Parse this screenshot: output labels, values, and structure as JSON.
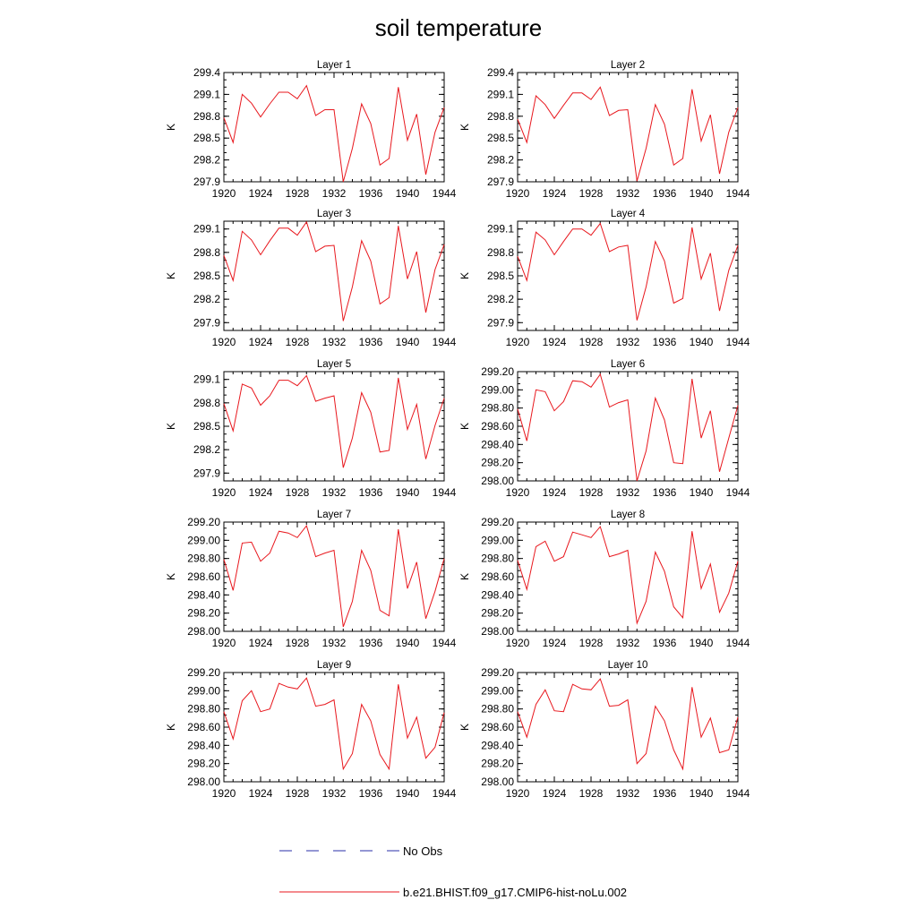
{
  "title": "soil temperature",
  "colors": {
    "model_line": "#e8171d",
    "obs_line": "#2a2fa8",
    "axis": "#000000"
  },
  "legend": {
    "obs_label": "No Obs",
    "model_label": "b.e21.BHIST.f09_g17.CMIP6-hist-noLu.002"
  },
  "chart_data": [
    {
      "type": "line",
      "title": "Layer 1",
      "ylabel": "K",
      "xlabel": "",
      "xlim": [
        1920,
        1944
      ],
      "ylim": [
        297.9,
        299.4
      ],
      "yticks": [
        "297.9",
        "298.2",
        "298.5",
        "298.8",
        "299.1",
        "299.4"
      ],
      "xticks": [
        "1920",
        "1924",
        "1928",
        "1932",
        "1936",
        "1940",
        "1944"
      ],
      "x": [
        1920,
        1921,
        1922,
        1923,
        1924,
        1925,
        1926,
        1927,
        1928,
        1929,
        1930,
        1931,
        1932,
        1933,
        1934,
        1935,
        1936,
        1937,
        1938,
        1939,
        1940,
        1941,
        1942,
        1943,
        1944
      ],
      "series": [
        {
          "name": "b.e21.BHIST.f09_g17.CMIP6-hist-noLu.002",
          "values": [
            298.78,
            298.44,
            299.1,
            298.98,
            298.79,
            298.97,
            299.13,
            299.13,
            299.04,
            299.22,
            298.81,
            298.89,
            298.89,
            297.9,
            298.36,
            298.97,
            298.7,
            298.13,
            298.22,
            299.2,
            298.47,
            298.83,
            298.0,
            298.58,
            298.92
          ]
        }
      ]
    },
    {
      "type": "line",
      "title": "Layer 2",
      "ylabel": "K",
      "xlabel": "",
      "xlim": [
        1920,
        1944
      ],
      "ylim": [
        297.9,
        299.4
      ],
      "yticks": [
        "297.9",
        "298.2",
        "298.5",
        "298.8",
        "299.1",
        "299.4"
      ],
      "xticks": [
        "1920",
        "1924",
        "1928",
        "1932",
        "1936",
        "1940",
        "1944"
      ],
      "x": [
        1920,
        1921,
        1922,
        1923,
        1924,
        1925,
        1926,
        1927,
        1928,
        1929,
        1930,
        1931,
        1932,
        1933,
        1934,
        1935,
        1936,
        1937,
        1938,
        1939,
        1940,
        1941,
        1942,
        1943,
        1944
      ],
      "series": [
        {
          "name": "b.e21.BHIST.f09_g17.CMIP6-hist-noLu.002",
          "values": [
            298.76,
            298.44,
            299.08,
            298.96,
            298.77,
            298.95,
            299.12,
            299.12,
            299.03,
            299.2,
            298.81,
            298.88,
            298.89,
            297.91,
            298.36,
            298.96,
            298.69,
            298.13,
            298.22,
            299.17,
            298.46,
            298.82,
            298.01,
            298.58,
            298.92
          ]
        }
      ]
    },
    {
      "type": "line",
      "title": "Layer 3",
      "ylabel": "K",
      "xlabel": "",
      "xlim": [
        1920,
        1944
      ],
      "ylim": [
        297.8,
        299.2
      ],
      "yticks": [
        "297.9",
        "298.2",
        "298.5",
        "298.8",
        "299.1"
      ],
      "xticks": [
        "1920",
        "1924",
        "1928",
        "1932",
        "1936",
        "1940",
        "1944"
      ],
      "x": [
        1920,
        1921,
        1922,
        1923,
        1924,
        1925,
        1926,
        1927,
        1928,
        1929,
        1930,
        1931,
        1932,
        1933,
        1934,
        1935,
        1936,
        1937,
        1938,
        1939,
        1940,
        1941,
        1942,
        1943,
        1944
      ],
      "series": [
        {
          "name": "b.e21.BHIST.f09_g17.CMIP6-hist-noLu.002",
          "values": [
            298.76,
            298.44,
            299.07,
            298.96,
            298.77,
            298.95,
            299.11,
            299.11,
            299.02,
            299.19,
            298.81,
            298.88,
            298.89,
            297.92,
            298.36,
            298.95,
            298.69,
            298.14,
            298.22,
            299.14,
            298.46,
            298.81,
            298.03,
            298.58,
            298.9
          ]
        }
      ]
    },
    {
      "type": "line",
      "title": "Layer 4",
      "ylabel": "K",
      "xlabel": "",
      "xlim": [
        1920,
        1944
      ],
      "ylim": [
        297.8,
        299.2
      ],
      "yticks": [
        "297.9",
        "298.2",
        "298.5",
        "298.8",
        "299.1"
      ],
      "xticks": [
        "1920",
        "1924",
        "1928",
        "1932",
        "1936",
        "1940",
        "1944"
      ],
      "x": [
        1920,
        1921,
        1922,
        1923,
        1924,
        1925,
        1926,
        1927,
        1928,
        1929,
        1930,
        1931,
        1932,
        1933,
        1934,
        1935,
        1936,
        1937,
        1938,
        1939,
        1940,
        1941,
        1942,
        1943,
        1944
      ],
      "series": [
        {
          "name": "b.e21.BHIST.f09_g17.CMIP6-hist-noLu.002",
          "values": [
            298.75,
            298.44,
            299.06,
            298.96,
            298.77,
            298.94,
            299.1,
            299.1,
            299.02,
            299.17,
            298.81,
            298.87,
            298.89,
            297.93,
            298.36,
            298.94,
            298.69,
            298.15,
            298.21,
            299.12,
            298.46,
            298.79,
            298.05,
            298.57,
            298.89
          ]
        }
      ]
    },
    {
      "type": "line",
      "title": "Layer 5",
      "ylabel": "K",
      "xlabel": "",
      "xlim": [
        1920,
        1944
      ],
      "ylim": [
        297.8,
        299.2
      ],
      "yticks": [
        "297.9",
        "298.2",
        "298.5",
        "298.8",
        "299.1"
      ],
      "xticks": [
        "1920",
        "1924",
        "1928",
        "1932",
        "1936",
        "1940",
        "1944"
      ],
      "x": [
        1920,
        1921,
        1922,
        1923,
        1924,
        1925,
        1926,
        1927,
        1928,
        1929,
        1930,
        1931,
        1932,
        1933,
        1934,
        1935,
        1936,
        1937,
        1938,
        1939,
        1940,
        1941,
        1942,
        1943,
        1944
      ],
      "series": [
        {
          "name": "b.e21.BHIST.f09_g17.CMIP6-hist-noLu.002",
          "values": [
            298.79,
            298.44,
            299.04,
            298.99,
            298.77,
            298.89,
            299.09,
            299.09,
            299.02,
            299.15,
            298.82,
            298.86,
            298.89,
            297.97,
            298.35,
            298.93,
            298.68,
            298.17,
            298.19,
            299.12,
            298.46,
            298.78,
            298.08,
            298.51,
            298.86
          ]
        }
      ]
    },
    {
      "type": "line",
      "title": "Layer 6",
      "ylabel": "K",
      "xlabel": "",
      "xlim": [
        1920,
        1944
      ],
      "ylim": [
        298.0,
        299.2
      ],
      "yticks": [
        "298.00",
        "298.20",
        "298.40",
        "298.60",
        "298.80",
        "299.00",
        "299.20"
      ],
      "xticks": [
        "1920",
        "1924",
        "1928",
        "1932",
        "1936",
        "1940",
        "1944"
      ],
      "x": [
        1920,
        1921,
        1922,
        1923,
        1924,
        1925,
        1926,
        1927,
        1928,
        1929,
        1930,
        1931,
        1932,
        1933,
        1934,
        1935,
        1936,
        1937,
        1938,
        1939,
        1940,
        1941,
        1942,
        1943,
        1944
      ],
      "series": [
        {
          "name": "b.e21.BHIST.f09_g17.CMIP6-hist-noLu.002",
          "values": [
            298.79,
            298.44,
            299.0,
            298.98,
            298.77,
            298.87,
            299.1,
            299.09,
            299.03,
            299.17,
            298.81,
            298.86,
            298.89,
            298.0,
            298.33,
            298.91,
            298.67,
            298.2,
            298.19,
            299.12,
            298.47,
            298.77,
            298.1,
            298.47,
            298.83
          ]
        }
      ]
    },
    {
      "type": "line",
      "title": "Layer 7",
      "ylabel": "K",
      "xlabel": "",
      "xlim": [
        1920,
        1944
      ],
      "ylim": [
        298.0,
        299.2
      ],
      "yticks": [
        "298.00",
        "298.20",
        "298.40",
        "298.60",
        "298.80",
        "299.00",
        "299.20"
      ],
      "xticks": [
        "1920",
        "1924",
        "1928",
        "1932",
        "1936",
        "1940",
        "1944"
      ],
      "x": [
        1920,
        1921,
        1922,
        1923,
        1924,
        1925,
        1926,
        1927,
        1928,
        1929,
        1930,
        1931,
        1932,
        1933,
        1934,
        1935,
        1936,
        1937,
        1938,
        1939,
        1940,
        1941,
        1942,
        1943,
        1944
      ],
      "series": [
        {
          "name": "b.e21.BHIST.f09_g17.CMIP6-hist-noLu.002",
          "values": [
            298.79,
            298.45,
            298.97,
            298.98,
            298.77,
            298.86,
            299.1,
            299.08,
            299.03,
            299.16,
            298.82,
            298.86,
            298.89,
            298.05,
            298.33,
            298.89,
            298.67,
            298.23,
            298.17,
            299.12,
            298.47,
            298.76,
            298.14,
            298.44,
            298.8
          ]
        }
      ]
    },
    {
      "type": "line",
      "title": "Layer 8",
      "ylabel": "K",
      "xlabel": "",
      "xlim": [
        1920,
        1944
      ],
      "ylim": [
        298.0,
        299.2
      ],
      "yticks": [
        "298.00",
        "298.20",
        "298.40",
        "298.60",
        "298.80",
        "299.00",
        "299.20"
      ],
      "xticks": [
        "1920",
        "1924",
        "1928",
        "1932",
        "1936",
        "1940",
        "1944"
      ],
      "x": [
        1920,
        1921,
        1922,
        1923,
        1924,
        1925,
        1926,
        1927,
        1928,
        1929,
        1930,
        1931,
        1932,
        1933,
        1934,
        1935,
        1936,
        1937,
        1938,
        1939,
        1940,
        1941,
        1942,
        1943,
        1944
      ],
      "series": [
        {
          "name": "b.e21.BHIST.f09_g17.CMIP6-hist-noLu.002",
          "values": [
            298.78,
            298.46,
            298.93,
            298.99,
            298.77,
            298.82,
            299.09,
            299.06,
            299.03,
            299.15,
            298.82,
            298.85,
            298.89,
            298.09,
            298.33,
            298.87,
            298.66,
            298.27,
            298.15,
            299.1,
            298.47,
            298.74,
            298.21,
            298.42,
            298.77
          ]
        }
      ]
    },
    {
      "type": "line",
      "title": "Layer 9",
      "ylabel": "K",
      "xlabel": "",
      "xlim": [
        1920,
        1944
      ],
      "ylim": [
        298.0,
        299.2
      ],
      "yticks": [
        "298.00",
        "298.20",
        "298.40",
        "298.60",
        "298.80",
        "299.00",
        "299.20"
      ],
      "xticks": [
        "1920",
        "1924",
        "1928",
        "1932",
        "1936",
        "1940",
        "1944"
      ],
      "x": [
        1920,
        1921,
        1922,
        1923,
        1924,
        1925,
        1926,
        1927,
        1928,
        1929,
        1930,
        1931,
        1932,
        1933,
        1934,
        1935,
        1936,
        1937,
        1938,
        1939,
        1940,
        1941,
        1942,
        1943,
        1944
      ],
      "series": [
        {
          "name": "b.e21.BHIST.f09_g17.CMIP6-hist-noLu.002",
          "values": [
            298.77,
            298.47,
            298.89,
            299.0,
            298.77,
            298.8,
            299.08,
            299.04,
            299.02,
            299.14,
            298.83,
            298.85,
            298.9,
            298.14,
            298.31,
            298.85,
            298.67,
            298.3,
            298.14,
            299.07,
            298.48,
            298.71,
            298.26,
            298.38,
            298.76
          ]
        }
      ]
    },
    {
      "type": "line",
      "title": "Layer 10",
      "ylabel": "K",
      "xlabel": "",
      "xlim": [
        1920,
        1944
      ],
      "ylim": [
        298.0,
        299.2
      ],
      "yticks": [
        "298.00",
        "298.20",
        "298.40",
        "298.60",
        "298.80",
        "299.00",
        "299.20"
      ],
      "xticks": [
        "1920",
        "1924",
        "1928",
        "1932",
        "1936",
        "1940",
        "1944"
      ],
      "x": [
        1920,
        1921,
        1922,
        1923,
        1924,
        1925,
        1926,
        1927,
        1928,
        1929,
        1930,
        1931,
        1932,
        1933,
        1934,
        1935,
        1936,
        1937,
        1938,
        1939,
        1940,
        1941,
        1942,
        1943,
        1944
      ],
      "series": [
        {
          "name": "b.e21.BHIST.f09_g17.CMIP6-hist-noLu.002",
          "values": [
            298.77,
            298.49,
            298.85,
            299.01,
            298.78,
            298.77,
            299.07,
            299.02,
            299.01,
            299.13,
            298.83,
            298.84,
            298.9,
            298.2,
            298.31,
            298.83,
            298.67,
            298.35,
            298.14,
            299.04,
            298.49,
            298.7,
            298.32,
            298.35,
            298.71
          ]
        }
      ]
    }
  ]
}
